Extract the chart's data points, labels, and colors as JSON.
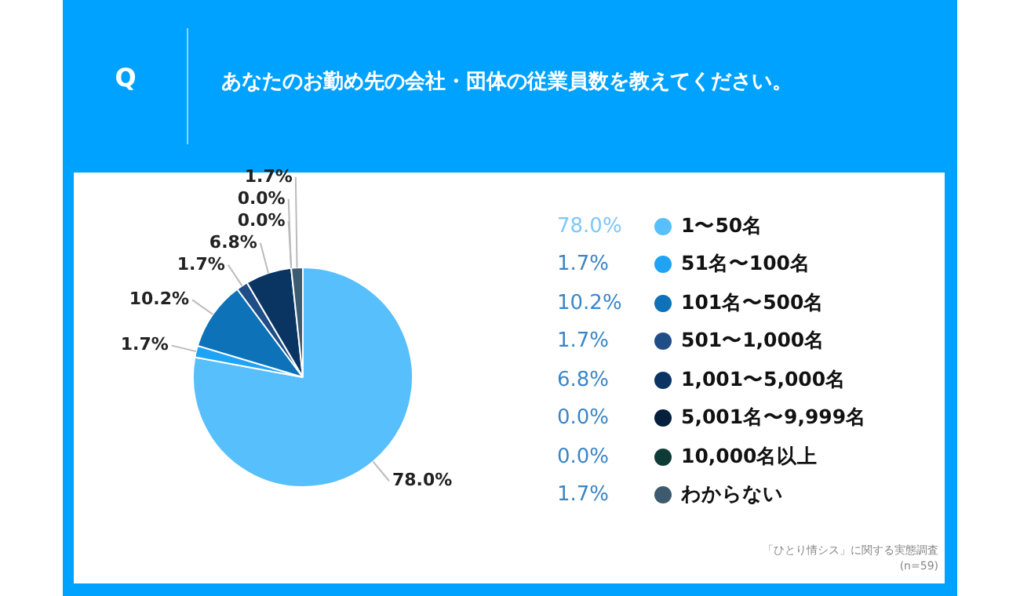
{
  "chart_data": {
    "type": "pie",
    "title": "あなたのお勤め先の会社・団体の従業員数を教えてください。",
    "categories": [
      "1〜50名",
      "51名〜100名",
      "101名〜500名",
      "501〜1,000名",
      "1,001〜5,000名",
      "5,001名〜9,999名",
      "10,000名以上",
      "わからない"
    ],
    "values": [
      78.0,
      1.7,
      10.2,
      1.7,
      6.8,
      0.0,
      0.0,
      1.7
    ],
    "value_labels": [
      "78.0%",
      "1.7%",
      "10.2%",
      "1.7%",
      "6.8%",
      "0.0%",
      "0.0%",
      "1.7%"
    ],
    "colors": [
      "#57bffb",
      "#1ea3f5",
      "#0d72b8",
      "#1f4e87",
      "#0a3563",
      "#061f3d",
      "#0e3b36",
      "#3d5a6e"
    ],
    "legend": "right",
    "annotations": [
      "Q",
      "「ひとり情シス」に関する実態調査",
      "(n=59)"
    ]
  }
}
